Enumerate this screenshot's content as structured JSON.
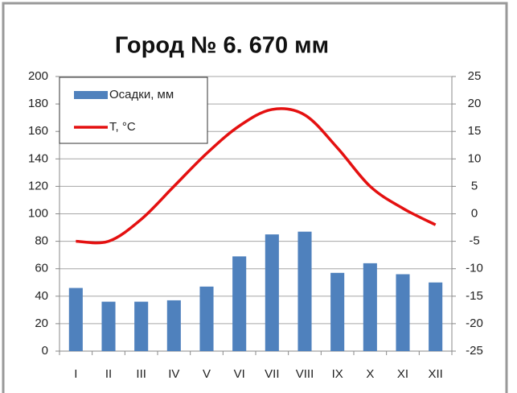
{
  "chart_data": {
    "type": "bar-line",
    "title": "Город № 6. 670 мм",
    "categories": [
      "I",
      "II",
      "III",
      "IV",
      "V",
      "VI",
      "VII",
      "VIII",
      "IX",
      "X",
      "XI",
      "XII"
    ],
    "series": [
      {
        "name": "Осадки, мм",
        "type": "bar",
        "color": "#4f81bd",
        "values": [
          46,
          36,
          36,
          37,
          47,
          69,
          85,
          87,
          57,
          64,
          56,
          50
        ]
      },
      {
        "name": "T, °C",
        "type": "line",
        "axis": "y2",
        "color": "#e41010",
        "values": [
          -5,
          -5,
          -1,
          5,
          11,
          16,
          19,
          18,
          12,
          5,
          1,
          -2
        ]
      }
    ],
    "ylim": [
      0,
      200
    ],
    "yticks": [
      0,
      20,
      40,
      60,
      80,
      100,
      120,
      140,
      160,
      180,
      200
    ],
    "y2lim": [
      -25,
      25
    ],
    "y2ticks": [
      -25,
      -20,
      -15,
      -10,
      -5,
      0,
      5,
      10,
      15,
      20,
      25
    ],
    "grid": true,
    "legend": "top-left"
  }
}
